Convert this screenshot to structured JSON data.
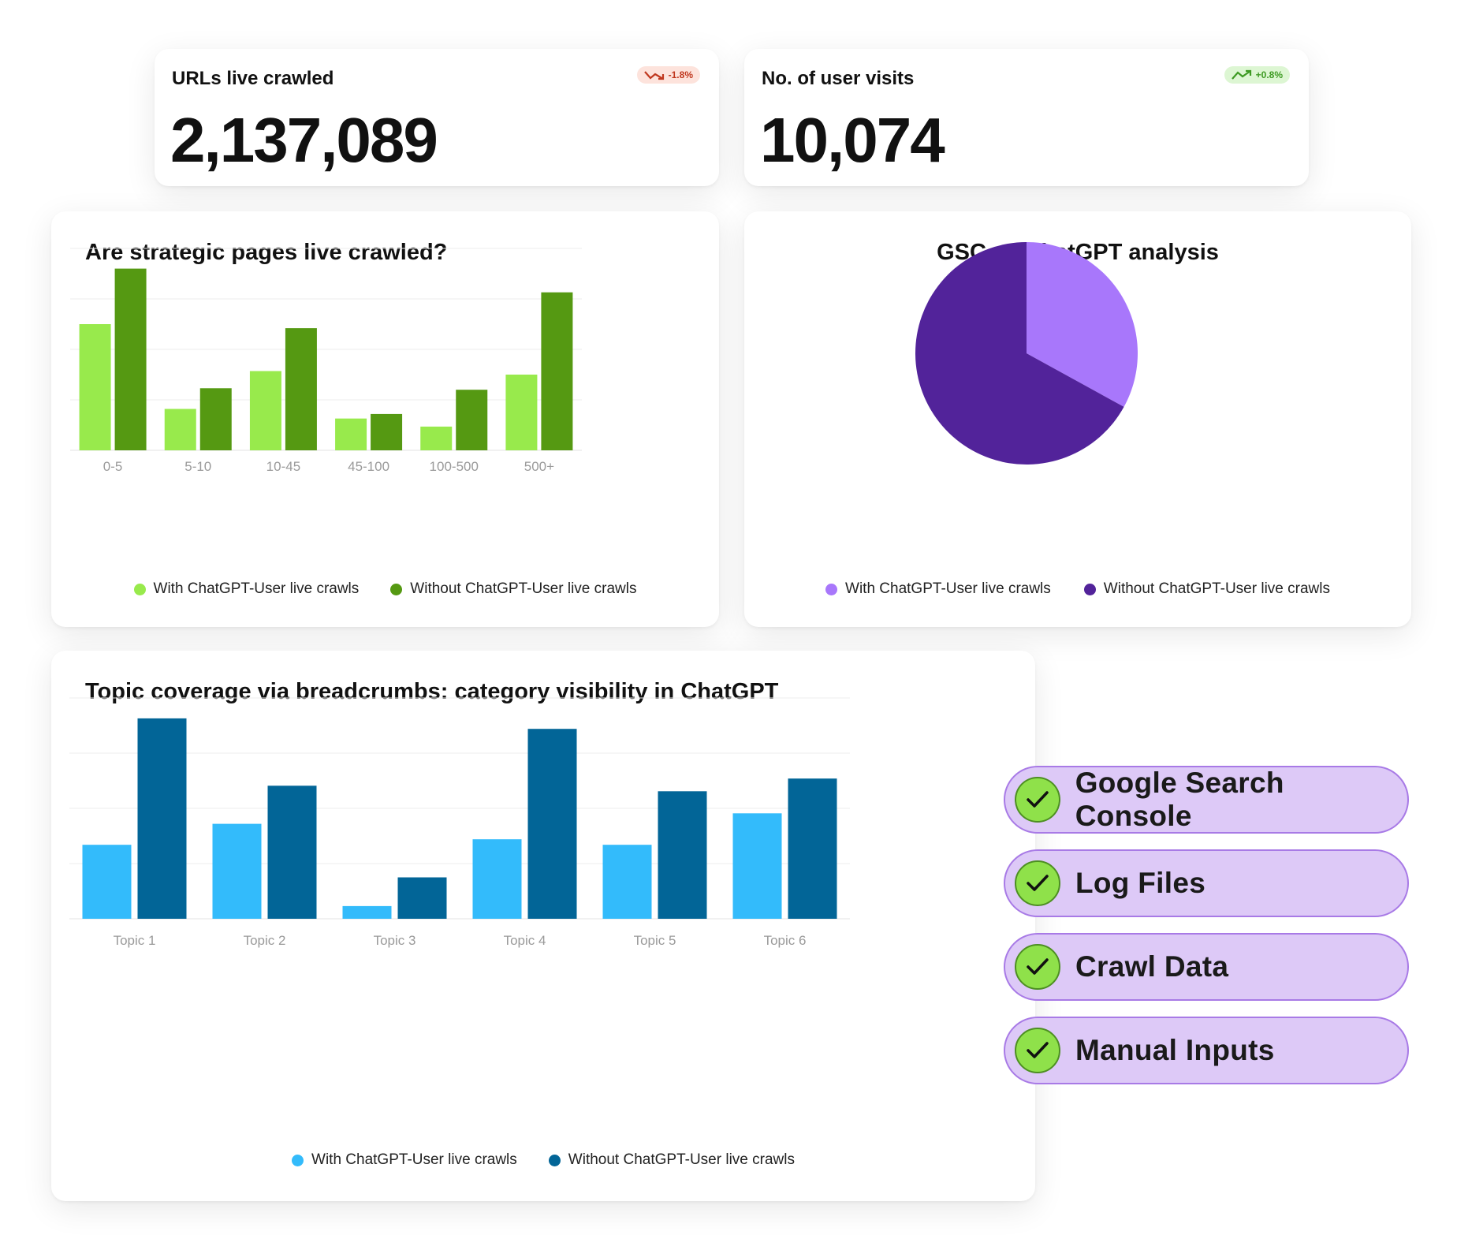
{
  "kpis": [
    {
      "label": "URLs live crawled",
      "value": "2,137,089",
      "change": "-1.8%",
      "direction": "down"
    },
    {
      "label": "No. of user visits",
      "value": "10,074",
      "change": "+0.8%",
      "direction": "up"
    }
  ],
  "colors": {
    "light_green": "#98ea4c",
    "dark_green": "#559912",
    "light_purple": "#a877fb",
    "dark_purple": "#52239a",
    "light_blue": "#33bbfb",
    "dark_blue": "#026597"
  },
  "chart_data": [
    {
      "type": "bar",
      "title": "Are strategic pages live crawled?",
      "categories": [
        "0-5",
        "5-10",
        "10-45",
        "45-100",
        "100-500",
        "500+"
      ],
      "series": [
        {
          "name": "With ChatGPT-User live crawls",
          "color": "#98ea4c",
          "values": [
            2.5,
            0.82,
            1.57,
            0.63,
            0.47,
            1.5
          ]
        },
        {
          "name": "Without ChatGPT-User live crawls",
          "color": "#559912",
          "values": [
            3.6,
            1.23,
            2.42,
            0.72,
            1.2,
            3.13
          ]
        }
      ],
      "ylim": [
        0,
        4
      ],
      "gridlines": 4,
      "xlabel": "",
      "ylabel": ""
    },
    {
      "type": "pie",
      "title": "GSC vs ChatGPT analysis",
      "slices": [
        {
          "name": "With ChatGPT-User live crawls",
          "value": 33,
          "color": "#a877fb"
        },
        {
          "name": "Without ChatGPT-User live crawls",
          "value": 67,
          "color": "#52239a"
        }
      ]
    },
    {
      "type": "bar",
      "title": "Topic coverage via breadcrumbs: category visibility in ChatGPT",
      "categories": [
        "Topic 1",
        "Topic 2",
        "Topic 3",
        "Topic 4",
        "Topic 5",
        "Topic 6"
      ],
      "series": [
        {
          "name": "With ChatGPT-User live crawls",
          "color": "#33bbfb",
          "values": [
            1.34,
            1.72,
            0.23,
            1.44,
            1.34,
            1.91
          ]
        },
        {
          "name": "Without ChatGPT-User live crawls",
          "color": "#026597",
          "values": [
            3.63,
            2.41,
            0.75,
            3.44,
            2.31,
            2.54
          ]
        }
      ],
      "ylim": [
        0,
        4
      ],
      "gridlines": 4,
      "xlabel": "",
      "ylabel": ""
    }
  ],
  "sources": [
    {
      "label": "Google Search Console",
      "icon": "check-icon"
    },
    {
      "label": "Log Files",
      "icon": "check-icon"
    },
    {
      "label": "Crawl Data",
      "icon": "check-icon"
    },
    {
      "label": "Manual Inputs",
      "icon": "check-icon"
    }
  ]
}
